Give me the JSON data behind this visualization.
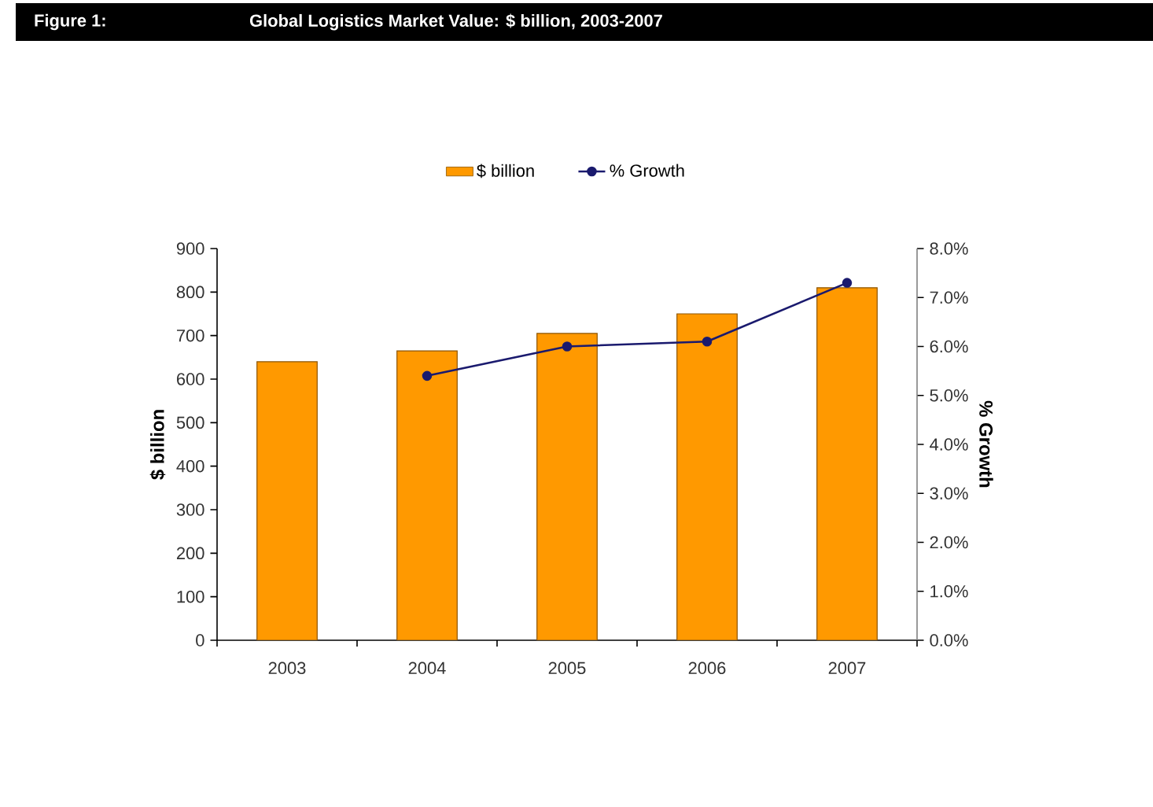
{
  "chart_data": {
    "type": "bar",
    "subtitle": "Figure 1:",
    "title": "Global Logistics Market Value: $ billion, 2003-2007",
    "categories": [
      "2003",
      "2004",
      "2005",
      "2006",
      "2007"
    ],
    "series": [
      {
        "name": "$ billion",
        "color": "#ff9900",
        "values": [
          640,
          665,
          705,
          750,
          810
        ]
      },
      {
        "name": "% Growth",
        "type": "line",
        "axis": "y2",
        "color": "#1a1a6e",
        "marker": "circle",
        "values": [
          null,
          5.4,
          6.0,
          6.1,
          7.3
        ]
      }
    ],
    "ylabel": "$ billion",
    "y2label": "% Growth",
    "ylim": [
      0,
      900
    ],
    "yticks": [
      0,
      100,
      200,
      300,
      400,
      500,
      600,
      700,
      800,
      900
    ],
    "y2lim": [
      0,
      8
    ],
    "y2ticks": [
      {
        "value": 0,
        "label": "0.0%"
      },
      {
        "value": 1,
        "label": "1.0%"
      },
      {
        "value": 2,
        "label": "2.0%"
      },
      {
        "value": 3,
        "label": "3.0%"
      },
      {
        "value": 4,
        "label": "4.0%"
      },
      {
        "value": 5,
        "label": "5.0%"
      },
      {
        "value": 6,
        "label": "6.0%"
      },
      {
        "value": 7,
        "label": "7.0%"
      },
      {
        "value": 8,
        "label": "8.0%"
      }
    ],
    "legend": "top"
  }
}
